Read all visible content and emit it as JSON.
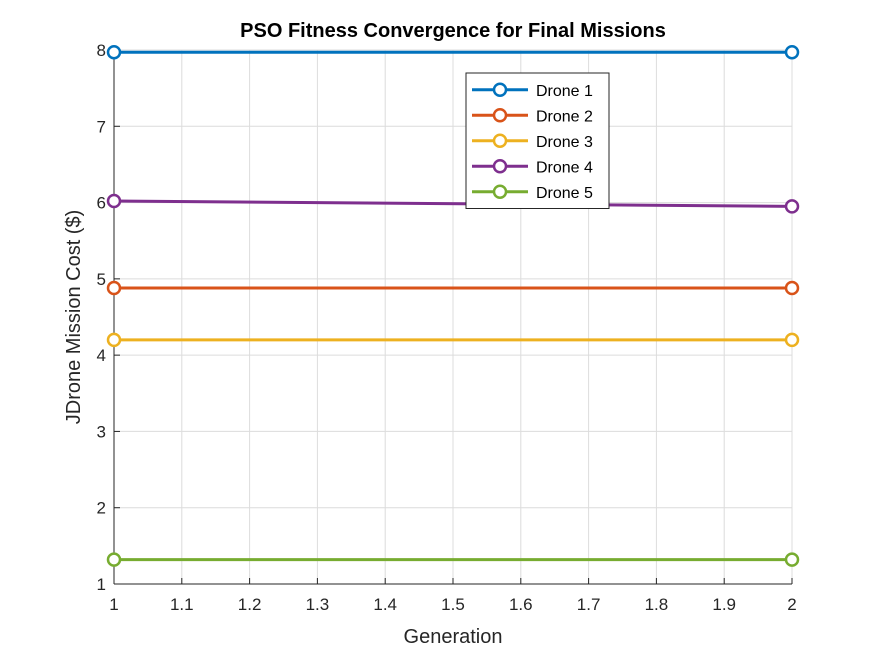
{
  "chart_data": {
    "type": "line",
    "title": "PSO Fitness Convergence for Final Missions",
    "xlabel": "Generation",
    "ylabel": "JDrone Mission Cost ($)",
    "xlim": [
      1,
      2
    ],
    "ylim": [
      1,
      8
    ],
    "x_ticks": [
      1,
      1.1,
      1.2,
      1.3,
      1.4,
      1.5,
      1.6,
      1.7,
      1.8,
      1.9,
      2
    ],
    "x_tick_labels": [
      "1",
      "1.1",
      "1.2",
      "1.3",
      "1.4",
      "1.5",
      "1.6",
      "1.7",
      "1.8",
      "1.9",
      "2"
    ],
    "y_ticks": [
      1,
      2,
      3,
      4,
      5,
      6,
      7,
      8
    ],
    "y_tick_labels": [
      "1",
      "2",
      "3",
      "4",
      "5",
      "6",
      "7",
      "8"
    ],
    "grid": true,
    "legend_position": "top-right-inside",
    "marker": "circle",
    "x": [
      1,
      2
    ],
    "series": [
      {
        "name": "Drone 1",
        "values": [
          7.97,
          7.97
        ],
        "color": "#0072BD"
      },
      {
        "name": "Drone 2",
        "values": [
          4.88,
          4.88
        ],
        "color": "#D95319"
      },
      {
        "name": "Drone 3",
        "values": [
          4.2,
          4.2
        ],
        "color": "#EDB120"
      },
      {
        "name": "Drone 4",
        "values": [
          6.02,
          5.95
        ],
        "color": "#7E2F8E"
      },
      {
        "name": "Drone 5",
        "values": [
          1.32,
          1.32
        ],
        "color": "#77AC30"
      }
    ]
  }
}
